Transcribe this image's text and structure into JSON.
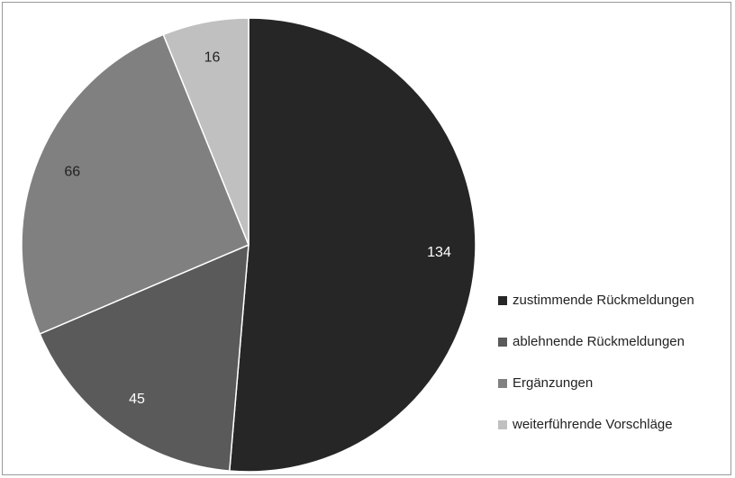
{
  "chart_data": {
    "type": "pie",
    "categories": [
      "zustimmende Rückmeldungen",
      "ablehnende Rückmeldungen",
      "Ergänzungen",
      "weiterführende Vorschläge"
    ],
    "values": [
      134,
      45,
      66,
      16
    ],
    "colors": [
      "#262626",
      "#5a5a5a",
      "#808080",
      "#c0c0c0"
    ],
    "label_color_on_dark": "#ffffff",
    "label_color_on_light": "#222222",
    "start_angle_deg": 0,
    "direction": "clockwise",
    "legend_position": "right",
    "title": ""
  }
}
